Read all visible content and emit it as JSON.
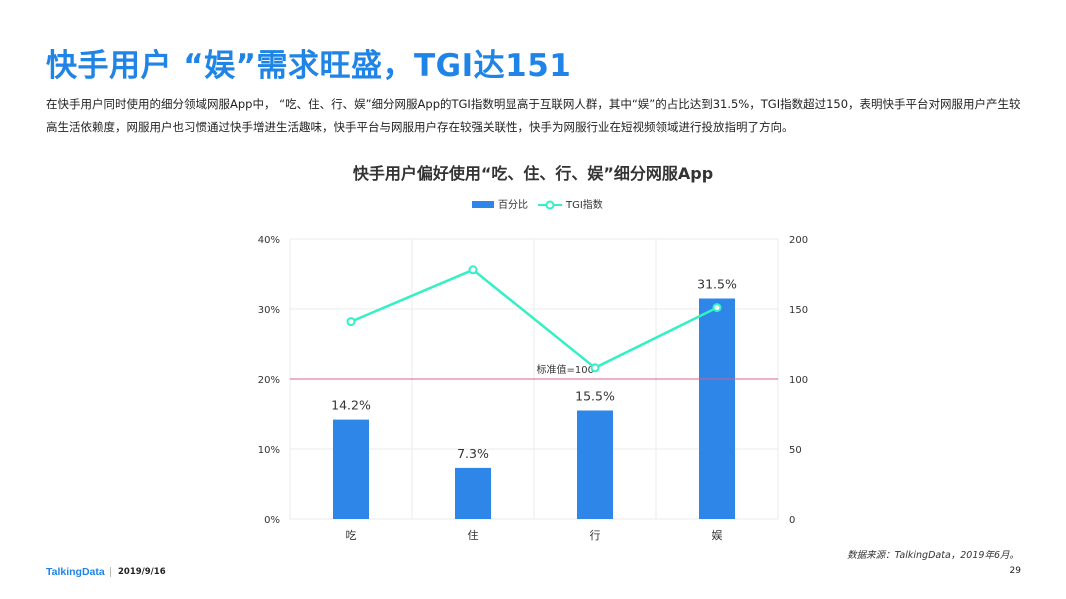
{
  "page": {
    "title": "快手用户 “娱”需求旺盛，TGI达151",
    "description": "在快手用户同时使用的细分领域网服App中，  “吃、住、行、娱”细分网服App的TGI指数明显高于互联网人群，其中“娱”的占比达到31.5%，TGI指数超过150，表明快手平台对网服用户产生较高生活依赖度，网服用户也习惯通过快手增进生活趣味，快手平台与网服用户存在较强关联性，快手为网服行业在短视频领域进行投放指明了方向。",
    "source": "数据来源：TalkingData，2019年6月。",
    "brand": "TalkingData",
    "date": "2019/9/16",
    "page_number": "29"
  },
  "chart_data": {
    "type": "bar",
    "title": "快手用户偏好使用“吃、住、行、娱”细分网服App",
    "categories": [
      "吃",
      "住",
      "行",
      "娱"
    ],
    "series": [
      {
        "name": "百分比",
        "type": "bar",
        "axis": "left",
        "values": [
          14.2,
          7.3,
          15.5,
          31.5
        ],
        "labels": [
          "14.2%",
          "",
          "15.5%",
          "31.5%"
        ],
        "color": "#2e86e8"
      },
      {
        "name": "TGI指数",
        "type": "line",
        "axis": "right",
        "values": [
          141,
          178,
          108,
          151
        ],
        "color": "#33f0c5"
      }
    ],
    "bar_label_extra": {
      "index": 1,
      "text": "7.3%"
    },
    "y_left": {
      "ylim": [
        0,
        40
      ],
      "ticks": [
        "0%",
        "10%",
        "20%",
        "30%",
        "40%"
      ]
    },
    "y_right": {
      "ylim": [
        0,
        200
      ],
      "ticks": [
        "0",
        "50",
        "100",
        "150",
        "200"
      ]
    },
    "reference_line": {
      "value": 100,
      "label": "标准值=100",
      "color": "#d9608f"
    },
    "legend_position": "top-center",
    "grid": true
  }
}
